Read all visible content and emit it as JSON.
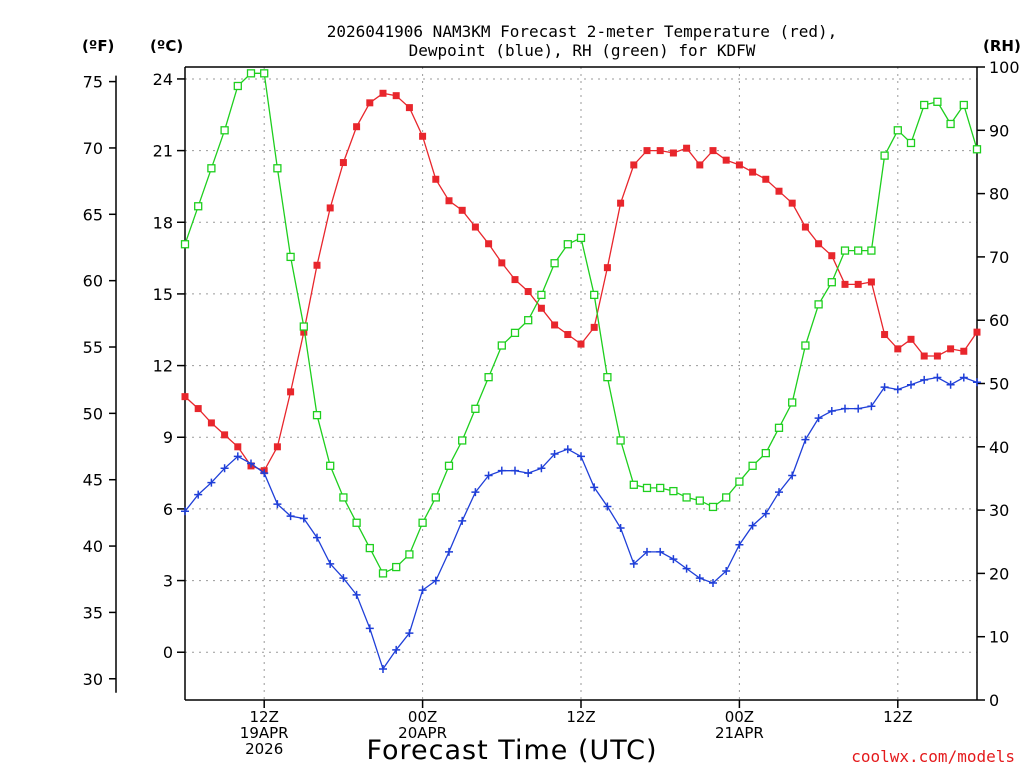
{
  "chart_data": {
    "type": "line",
    "title_line1": "2026041906 NAM3KM Forecast 2-meter Temperature (red),",
    "title_line2": "Dewpoint (blue), RH (green) for KDFW",
    "xlabel": "Forecast Time (UTC)",
    "credit": "coolwx.com/models",
    "units": {
      "fahrenheit": "(ºF)",
      "celsius": "(ºC)",
      "rh": "(RH)"
    },
    "x_hours_range": [
      -6,
      54
    ],
    "celsius_range": [
      -2,
      24.5
    ],
    "rh_range": [
      0,
      100
    ],
    "x_ticks": [
      {
        "hour": 0,
        "lines": [
          "12Z",
          "19APR",
          "2026"
        ]
      },
      {
        "hour": 12,
        "lines": [
          "00Z",
          "20APR"
        ]
      },
      {
        "hour": 24,
        "lines": [
          "12Z"
        ]
      },
      {
        "hour": 36,
        "lines": [
          "00Z",
          "21APR"
        ]
      },
      {
        "hour": 48,
        "lines": [
          "12Z"
        ]
      }
    ],
    "celsius_ticks": [
      0,
      3,
      6,
      9,
      12,
      15,
      18,
      21,
      24
    ],
    "celsius_tick_labels": [
      "0",
      "3",
      "6",
      "9",
      "12",
      "15",
      "18",
      "21",
      "24"
    ],
    "fahrenheit_ticks": [
      30,
      35,
      40,
      45,
      50,
      55,
      60,
      65,
      70,
      75
    ],
    "fahrenheit_tick_labels": [
      "30",
      "35",
      "40",
      "45",
      "50",
      "55",
      "60",
      "65",
      "70",
      "75"
    ],
    "rh_ticks": [
      0,
      10,
      20,
      30,
      40,
      50,
      60,
      70,
      80,
      90,
      100
    ],
    "rh_tick_labels": [
      "0",
      "10",
      "20",
      "30",
      "40",
      "50",
      "60",
      "70",
      "80",
      "90",
      "100"
    ],
    "series": [
      {
        "name": "2-meter Temperature",
        "unit": "C",
        "color": "#e8262c",
        "marker": "filled-square",
        "x": [
          -6,
          -5,
          -4,
          -3,
          -2,
          -1,
          0,
          1,
          2,
          3,
          4,
          5,
          6,
          7,
          8,
          9,
          10,
          11,
          12,
          13,
          14,
          15,
          16,
          17,
          18,
          19,
          20,
          21,
          22,
          23,
          24,
          25,
          26,
          27,
          28,
          29,
          30,
          31,
          32,
          33,
          34,
          35,
          36,
          37,
          38,
          39,
          40,
          41,
          42,
          43,
          44,
          45,
          46,
          47,
          48,
          49,
          50,
          51,
          52,
          53,
          54
        ],
        "values": [
          10.7,
          10.2,
          9.6,
          9.1,
          8.6,
          7.8,
          7.6,
          8.6,
          10.9,
          13.4,
          16.2,
          18.6,
          20.5,
          22.0,
          23.0,
          23.4,
          23.3,
          22.8,
          21.6,
          19.8,
          18.9,
          18.5,
          17.8,
          17.1,
          16.3,
          15.6,
          15.1,
          14.4,
          13.7,
          13.3,
          12.9,
          13.6,
          16.1,
          18.8,
          20.4,
          21.0,
          21.0,
          20.9,
          21.1,
          20.4,
          21.0,
          20.6,
          20.4,
          20.1,
          19.8,
          19.3,
          18.8,
          17.8,
          17.1,
          16.6,
          15.4,
          15.4,
          15.5,
          13.3,
          12.7,
          13.1,
          12.4,
          12.4,
          12.7,
          12.6,
          13.4
        ]
      },
      {
        "name": "Dewpoint",
        "unit": "C",
        "color": "#1f3fd8",
        "marker": "plus",
        "x": [
          -6,
          -5,
          -4,
          -3,
          -2,
          -1,
          0,
          1,
          2,
          3,
          4,
          5,
          6,
          7,
          8,
          9,
          10,
          11,
          12,
          13,
          14,
          15,
          16,
          17,
          18,
          19,
          20,
          21,
          22,
          23,
          24,
          25,
          26,
          27,
          28,
          29,
          30,
          31,
          32,
          33,
          34,
          35,
          36,
          37,
          38,
          39,
          40,
          41,
          42,
          43,
          44,
          45,
          46,
          47,
          48,
          49,
          50,
          51,
          52,
          53,
          54
        ],
        "values": [
          5.9,
          6.6,
          7.1,
          7.7,
          8.2,
          7.9,
          7.5,
          6.2,
          5.7,
          5.6,
          4.8,
          3.7,
          3.1,
          2.4,
          1.0,
          -0.7,
          0.1,
          0.8,
          2.6,
          3.0,
          4.2,
          5.5,
          6.7,
          7.4,
          7.6,
          7.6,
          7.5,
          7.7,
          8.3,
          8.5,
          8.2,
          6.9,
          6.1,
          5.2,
          3.7,
          4.2,
          4.2,
          3.9,
          3.5,
          3.1,
          2.9,
          3.4,
          4.5,
          5.3,
          5.8,
          6.7,
          7.4,
          8.9,
          9.8,
          10.1,
          10.2,
          10.2,
          10.3,
          11.1,
          11.0,
          11.2,
          11.4,
          11.5,
          11.2,
          11.5,
          11.3
        ]
      },
      {
        "name": "RH",
        "unit": "%",
        "color": "#1ecf1e",
        "marker": "open-square",
        "x": [
          -6,
          -5,
          -4,
          -3,
          -2,
          -1,
          0,
          1,
          2,
          3,
          4,
          5,
          6,
          7,
          8,
          9,
          10,
          11,
          12,
          13,
          14,
          15,
          16,
          17,
          18,
          19,
          20,
          21,
          22,
          23,
          24,
          25,
          26,
          27,
          28,
          29,
          30,
          31,
          32,
          33,
          34,
          35,
          36,
          37,
          38,
          39,
          40,
          41,
          42,
          43,
          44,
          45,
          46,
          47,
          48,
          49,
          50,
          51,
          52,
          53,
          54
        ],
        "values": [
          72,
          78,
          84,
          90,
          97,
          99,
          99,
          84,
          70,
          59,
          45,
          37,
          32,
          28,
          24,
          20,
          21,
          23,
          28,
          32,
          37,
          41,
          46,
          51,
          56,
          58,
          60,
          64,
          69,
          72,
          73,
          64,
          51,
          41,
          34,
          33.5,
          33.5,
          33,
          32,
          31.5,
          30.5,
          32,
          34.5,
          37,
          39,
          43,
          47,
          56,
          62.5,
          66,
          71,
          71,
          71,
          86,
          90,
          88,
          94,
          94.5,
          91,
          94,
          87
        ]
      }
    ]
  }
}
